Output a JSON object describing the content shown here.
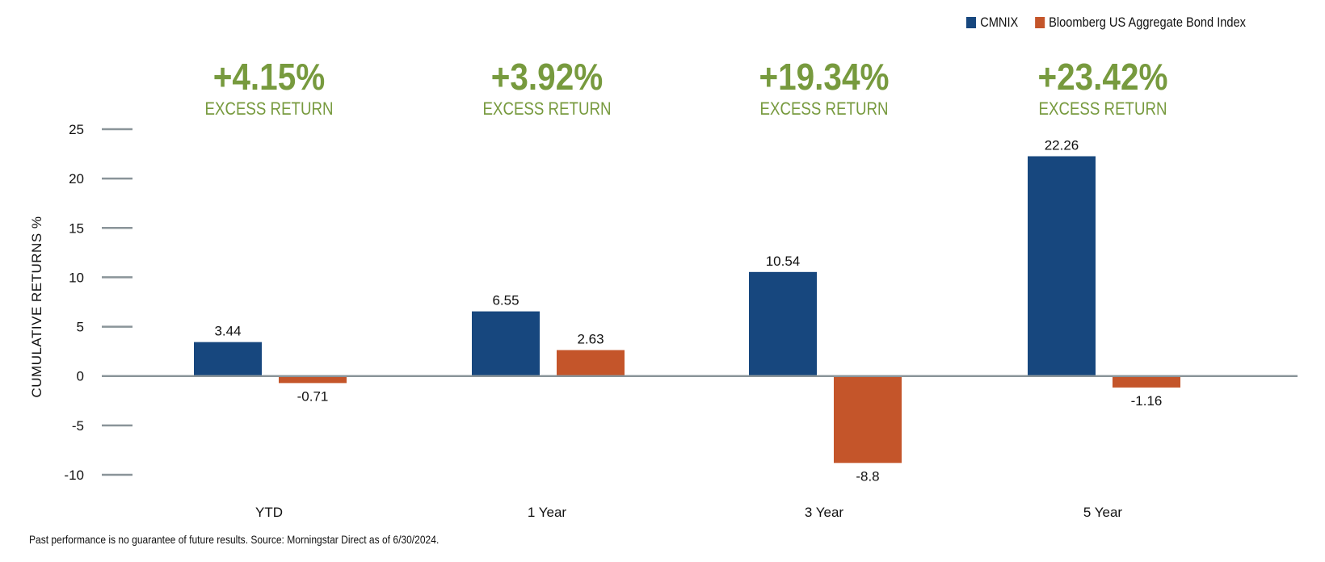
{
  "chart_data": {
    "type": "bar",
    "categories": [
      "YTD",
      "1 Year",
      "3 Year",
      "5 Year"
    ],
    "series": [
      {
        "name": "CMNIX",
        "values": [
          3.44,
          6.55,
          10.54,
          22.26
        ],
        "color": "#17477e"
      },
      {
        "name": "Bloomberg US Aggregate Bond Index",
        "values": [
          -0.71,
          2.63,
          -8.8,
          -1.16
        ],
        "color": "#c4552a"
      }
    ],
    "data_labels": [
      [
        "3.44",
        "6.55",
        "10.54",
        "22.26"
      ],
      [
        "-0.71",
        "2.63",
        "-8.8",
        "-1.16"
      ]
    ],
    "ylabel": "CUMULATIVE RETURNS %",
    "xlabel": "",
    "ylim": [
      -10,
      25
    ],
    "yticks": [
      25,
      20,
      15,
      10,
      5,
      0,
      -5,
      -10
    ],
    "legend": "top-right",
    "annotations": [
      {
        "value": "+4.15%",
        "label": "EXCESS RETURN"
      },
      {
        "value": "+3.92%",
        "label": "EXCESS RETURN"
      },
      {
        "value": "+19.34%",
        "label": "EXCESS RETURN"
      },
      {
        "value": "+23.42%",
        "label": "EXCESS RETURN"
      }
    ],
    "accent_color": "#779a3e"
  },
  "footnote": "Past performance is no guarantee of future results. Source: Morningstar Direct as of 6/30/2024."
}
